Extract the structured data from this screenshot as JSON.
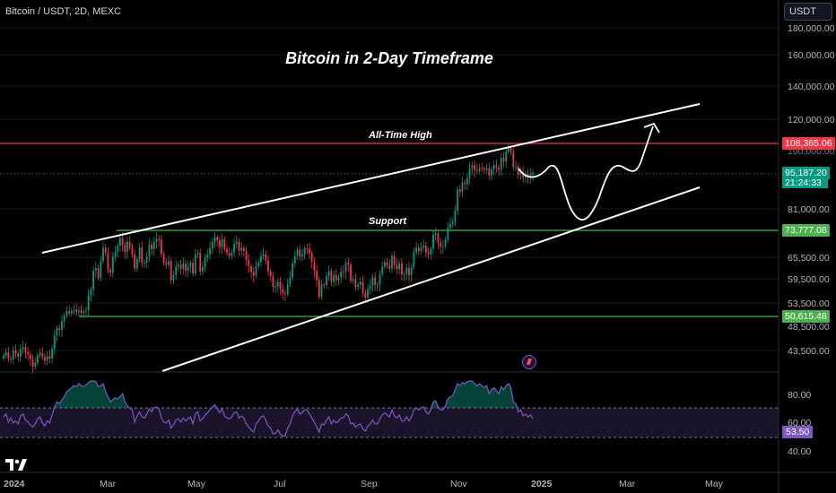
{
  "header": {
    "symbol": "Bitcoin / USDT, 2D, MEXC",
    "currency_button": "USDT"
  },
  "chart_title": "Bitcoin in 2-Day Timeframe",
  "annotations": {
    "ath": "All-Time High",
    "support": "Support"
  },
  "price_axis": [
    "180,000.00",
    "160,000.00",
    "140,000.00",
    "120,000.00",
    "108,365.06",
    "95,187.20",
    "81,000.00",
    "73,777.08",
    "65,500.00",
    "59,500.00",
    "53,500.00",
    "50,615.48",
    "48,500.00",
    "43,500.00"
  ],
  "price_tags": {
    "ath": {
      "value": "108,365.06",
      "color": "#f23645"
    },
    "last": {
      "value": "95,187.20",
      "countdown": "21:24:33",
      "color": "#089981"
    },
    "support_high": {
      "value": "73,777.08",
      "color": "#4caf50"
    },
    "support_low": {
      "value": "50,615.48",
      "color": "#4caf50"
    }
  },
  "rsi_axis": [
    "80.00",
    "60.00",
    "40.00"
  ],
  "rsi_value": "53.50",
  "time_axis": [
    "2024",
    "Mar",
    "May",
    "Jul",
    "Sep",
    "Nov",
    "2025",
    "Mar",
    "May"
  ],
  "colors": {
    "up": "#089981",
    "down": "#f23645",
    "rsi": "#7e57c2",
    "support": "#4caf50",
    "ath": "#f23645"
  },
  "chart_data": {
    "type": "candlestick",
    "title": "Bitcoin in 2-Day Timeframe",
    "y_scale": "log",
    "price_range": [
      40000,
      190000
    ],
    "closes": [
      42500,
      43100,
      42000,
      41800,
      43500,
      42900,
      42300,
      43800,
      44200,
      43100,
      42800,
      41900,
      40500,
      41200,
      42600,
      43000,
      42300,
      41600,
      42400,
      42000,
      43800,
      46500,
      48000,
      47600,
      49500,
      50700,
      51700,
      51200,
      51800,
      52100,
      51500,
      51900,
      51300,
      51700,
      51900,
      55500,
      56900,
      61800,
      62500,
      59800,
      64500,
      68300,
      66900,
      62100,
      61300,
      65800,
      67200,
      69000,
      71300,
      69200,
      67100,
      70100,
      68500,
      66300,
      62400,
      65000,
      68400,
      63900,
      64000,
      65800,
      69400,
      67900,
      70200,
      71100,
      70800,
      66500,
      64000,
      63400,
      64500,
      59300,
      60600,
      63000,
      63400,
      62300,
      63700,
      61800,
      63100,
      64000,
      61100,
      66300,
      66800,
      61600,
      62800,
      65500,
      66400,
      68200,
      70000,
      71600,
      70600,
      68600,
      71000,
      67900,
      66800,
      66000,
      66900,
      69500,
      70200,
      67500,
      68300,
      67400,
      64800,
      63000,
      61500,
      60500,
      63000,
      64100,
      65900,
      66400,
      64600,
      61600,
      60300,
      57500,
      57700,
      58900,
      57000,
      56000,
      55800,
      58300,
      60000,
      63800,
      66000,
      67800,
      65800,
      66400,
      68200,
      68100,
      66700,
      64200,
      61700,
      59300,
      55100,
      58100,
      58000,
      60300,
      61700,
      58800,
      60600,
      59300,
      60000,
      61600,
      61500,
      64000,
      63500,
      59100,
      59500,
      57500,
      58100,
      58800,
      56100,
      54900,
      57000,
      57800,
      60000,
      58100,
      58200,
      60800,
      62900,
      64100,
      63300,
      62300,
      66000,
      63300,
      62200,
      63800,
      60700,
      60900,
      62600,
      60600,
      62800,
      67000,
      68400,
      67300,
      68400,
      69000,
      67000,
      66400,
      68100,
      72300,
      72800,
      69900,
      68700,
      68900,
      70800,
      74700,
      75900,
      76600,
      80400,
      88500,
      87400,
      91000,
      90500,
      92900,
      97000,
      98300,
      96200,
      95800,
      97200,
      96800,
      96300,
      97100,
      94000,
      96600,
      98300,
      97300,
      96400,
      101500,
      100000,
      104400,
      106100,
      104200,
      97500,
      97800,
      94200,
      95300,
      93100,
      94600,
      93000,
      94300,
      95187
    ]
  },
  "rsi_series": [
    55,
    58,
    50,
    54,
    49,
    51,
    48,
    56,
    58,
    52,
    50,
    47,
    45,
    48,
    53,
    55,
    49,
    46,
    51,
    49,
    57,
    65,
    70,
    68,
    72,
    75,
    80,
    82,
    84,
    86,
    85,
    88,
    86,
    85,
    87,
    89,
    91,
    92,
    90,
    85,
    86,
    88,
    80,
    75,
    70,
    72,
    74,
    73,
    75,
    78,
    70,
    66,
    64,
    62,
    50,
    56,
    60,
    55,
    54,
    58,
    63,
    60,
    64,
    65,
    63,
    54,
    50,
    49,
    52,
    44,
    47,
    52,
    53,
    50,
    54,
    51,
    53,
    55,
    48,
    58,
    60,
    51,
    53,
    57,
    59,
    62,
    65,
    67,
    63,
    59,
    63,
    56,
    54,
    53,
    55,
    59,
    60,
    54,
    56,
    54,
    48,
    45,
    42,
    40,
    48,
    51,
    55,
    56,
    52,
    46,
    44,
    38,
    39,
    42,
    38,
    36,
    36,
    44,
    48,
    56,
    60,
    63,
    58,
    59,
    62,
    62,
    58,
    54,
    50,
    45,
    40,
    48,
    47,
    52,
    55,
    48,
    52,
    49,
    51,
    54,
    54,
    58,
    56,
    48,
    49,
    45,
    47,
    48,
    43,
    41,
    46,
    48,
    52,
    48,
    48,
    53,
    57,
    59,
    57,
    55,
    62,
    56,
    54,
    57,
    51,
    51,
    55,
    51,
    55,
    62,
    64,
    62,
    64,
    65,
    60,
    58,
    62,
    70,
    71,
    65,
    62,
    62,
    66,
    73,
    75,
    76,
    82,
    88,
    86,
    89,
    88,
    90,
    92,
    93,
    88,
    86,
    88,
    86,
    84,
    86,
    78,
    82,
    84,
    81,
    78,
    85,
    82,
    86,
    88,
    84,
    70,
    68,
    60,
    62,
    56,
    58,
    55,
    57,
    53.5
  ],
  "forecast": {
    "path_type": "hand-drawn projection"
  }
}
